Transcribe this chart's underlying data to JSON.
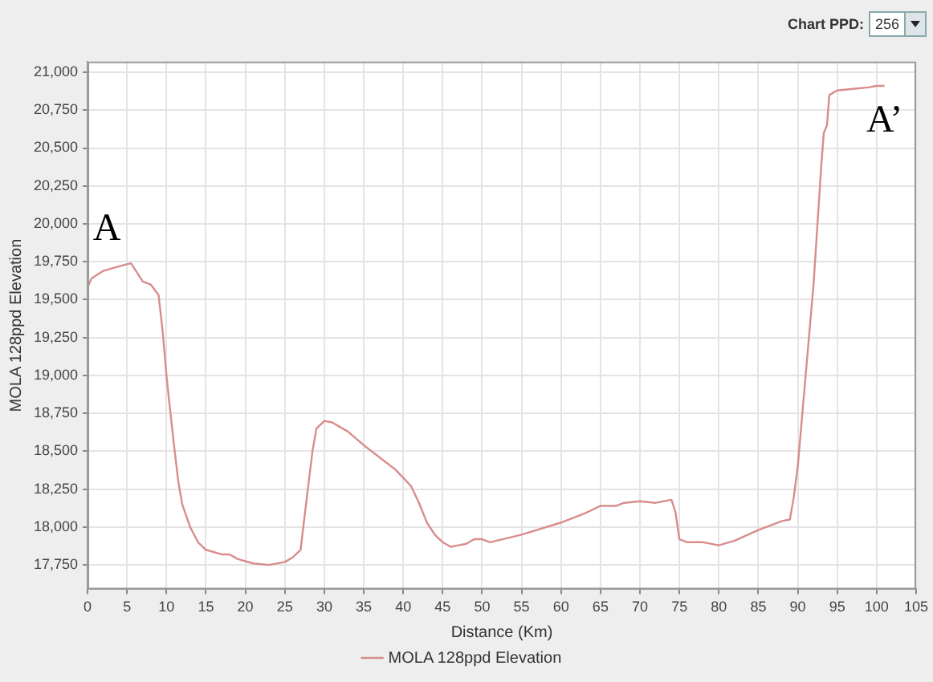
{
  "chart_data": {
    "type": "line",
    "xlabel": "Distance (Km)",
    "ylabel": "MOLA 128ppd Elevation",
    "annotations": [
      "Chart PPD:",
      "256",
      "A",
      "A’"
    ],
    "series": [
      {
        "name": "MOLA 128ppd Elevation",
        "color": "#d98c8c",
        "x": [
          0,
          0.5,
          2,
          4,
          5.5,
          6,
          7,
          8,
          9,
          9.5,
          10,
          10.3,
          11,
          11.5,
          12,
          13,
          14,
          15,
          17,
          18,
          19,
          21,
          23,
          25,
          26,
          27,
          27.2,
          27.8,
          28.5,
          29,
          30,
          31,
          33,
          35,
          37,
          39,
          41,
          42,
          43,
          44,
          45,
          46,
          47,
          48,
          49,
          50,
          51,
          55,
          60,
          63,
          65,
          67,
          68,
          70,
          72,
          74,
          74.5,
          75,
          76,
          78,
          80,
          82,
          85,
          88,
          89,
          89.5,
          90,
          90.5,
          91,
          91.5,
          92,
          92.5,
          93,
          93.3,
          93.7,
          94,
          95,
          97,
          99,
          100,
          101
        ],
        "values": [
          19580,
          19640,
          19690,
          19720,
          19740,
          19700,
          19620,
          19600,
          19530,
          19300,
          19000,
          18850,
          18520,
          18300,
          18150,
          18000,
          17900,
          17850,
          17820,
          17820,
          17790,
          17760,
          17750,
          17770,
          17800,
          17850,
          17940,
          18200,
          18500,
          18650,
          18700,
          18690,
          18630,
          18540,
          18460,
          18380,
          18270,
          18160,
          18030,
          17950,
          17900,
          17870,
          17880,
          17890,
          17920,
          17920,
          17900,
          17950,
          18030,
          18090,
          18140,
          18140,
          18160,
          18170,
          18160,
          18180,
          18100,
          17920,
          17900,
          17900,
          17880,
          17910,
          17980,
          18040,
          18050,
          18200,
          18400,
          18700,
          19000,
          19300,
          19600,
          20000,
          20400,
          20600,
          20650,
          20850,
          20880,
          20890,
          20900,
          20910,
          20910
        ]
      }
    ],
    "xlim": [
      0,
      105
    ],
    "xticks": [
      0,
      5,
      10,
      15,
      20,
      25,
      30,
      35,
      40,
      45,
      50,
      55,
      60,
      65,
      70,
      75,
      80,
      85,
      90,
      95,
      100,
      105
    ],
    "ylim": [
      17590,
      21070
    ],
    "yticks": [
      {
        "value": 17750,
        "label": "17,750"
      },
      {
        "value": 18000,
        "label": "18,000"
      },
      {
        "value": 18250,
        "label": "18,250"
      },
      {
        "value": 18500,
        "label": "18,500"
      },
      {
        "value": 18750,
        "label": "18,750"
      },
      {
        "value": 19000,
        "label": "19,000"
      },
      {
        "value": 19250,
        "label": "19,250"
      },
      {
        "value": 19500,
        "label": "19,500"
      },
      {
        "value": 19750,
        "label": "19,750"
      },
      {
        "value": 20000,
        "label": "20,000"
      },
      {
        "value": 20250,
        "label": "20,250"
      },
      {
        "value": 20500,
        "label": "20,500"
      },
      {
        "value": 20750,
        "label": "20,750"
      },
      {
        "value": 21000,
        "label": "21,000"
      }
    ],
    "grid": true,
    "legend": "bottom",
    "marker": "none",
    "line_style": "solid"
  }
}
